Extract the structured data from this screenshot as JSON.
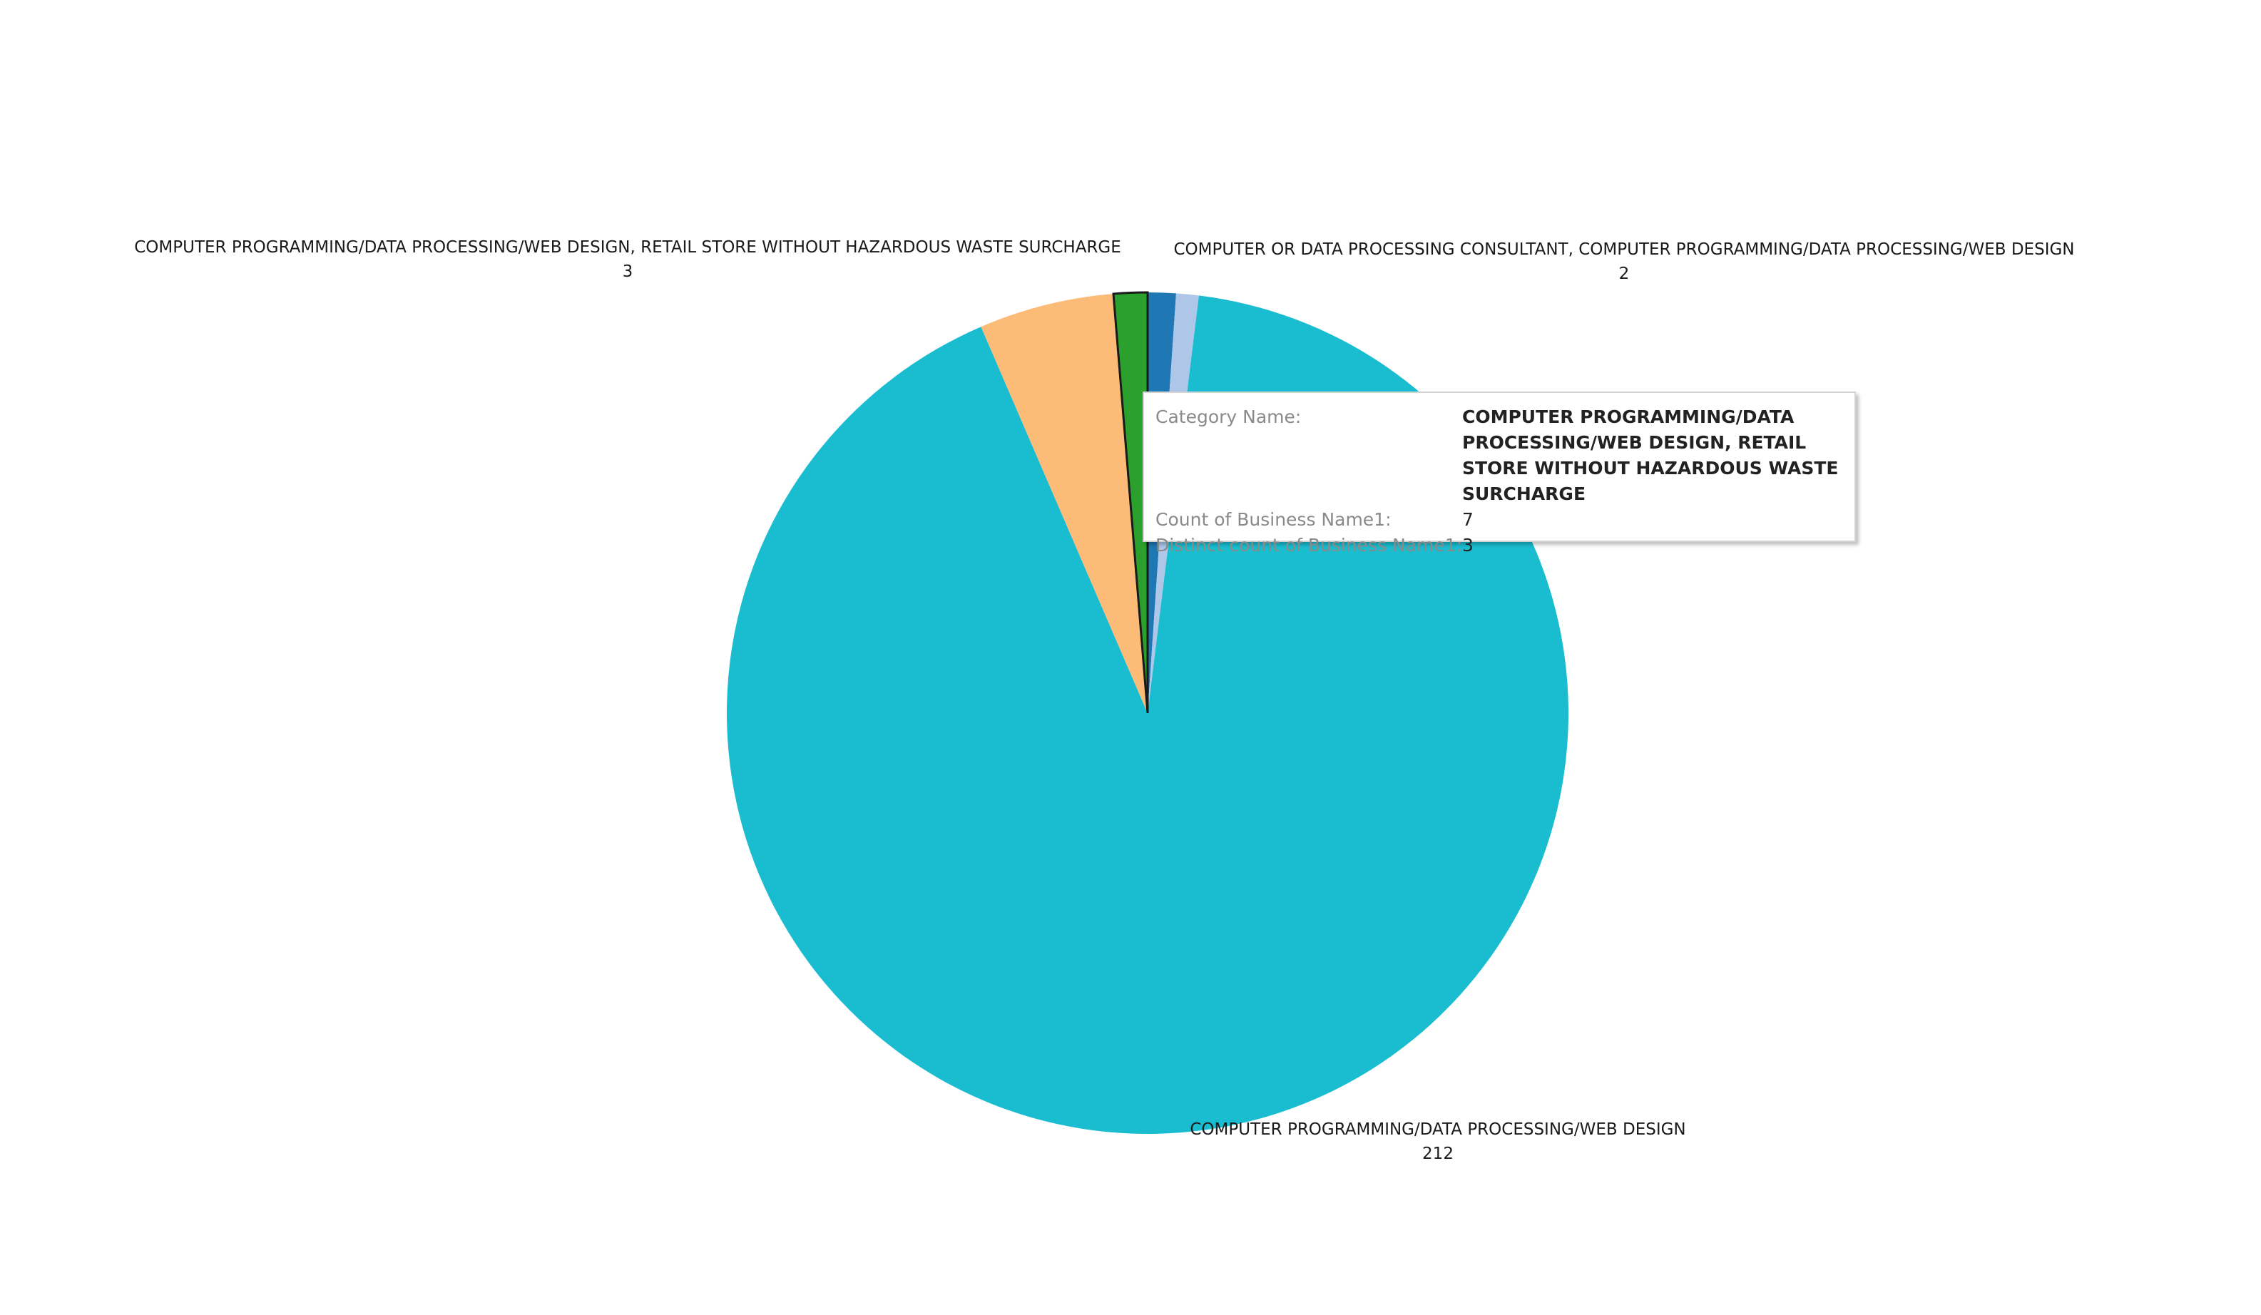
{
  "chart_data": {
    "type": "pie",
    "title": "",
    "slices": [
      {
        "category": "COMPUTER PROGRAMMING/DATA PROCESSING/WEB DESIGN",
        "value": 212,
        "color": "#1abdd0"
      },
      {
        "category": "",
        "value": 12,
        "color": "#fdbb78"
      },
      {
        "category": "COMPUTER PROGRAMMING/DATA PROCESSING/WEB DESIGN, RETAIL STORE WITHOUT HAZARDOUS WASTE SURCHARGE",
        "value": 3,
        "color": "#2ca02c",
        "highlighted": true
      },
      {
        "category": "",
        "value": 2.5,
        "color": "#1f77b4"
      },
      {
        "category": "COMPUTER OR DATA PROCESSING CONSULTANT, COMPUTER PROGRAMMING/DATA PROCESSING/WEB DESIGN",
        "value": 2,
        "color": "#aec7e8"
      }
    ],
    "labels": [
      {
        "name": "COMPUTER PROGRAMMING/DATA PROCESSING/WEB DESIGN, RETAIL STORE WITHOUT HAZARDOUS WASTE SURCHARGE",
        "value": "3"
      },
      {
        "name": "COMPUTER OR DATA PROCESSING CONSULTANT, COMPUTER PROGRAMMING/DATA PROCESSING/WEB DESIGN",
        "value": "2"
      },
      {
        "name": "COMPUTER PROGRAMMING/DATA PROCESSING/WEB DESIGN",
        "value": "212"
      }
    ]
  },
  "tooltip": {
    "category_key": "Category Name:",
    "category_value": "COMPUTER PROGRAMMING/DATA PROCESSING/WEB DESIGN, RETAIL STORE WITHOUT HAZARDOUS WASTE SURCHARGE",
    "count_key": "Count of Business Name1:",
    "count_value": "7",
    "distinct_key": "Distinct count of Business Name1:",
    "distinct_value": "3"
  }
}
